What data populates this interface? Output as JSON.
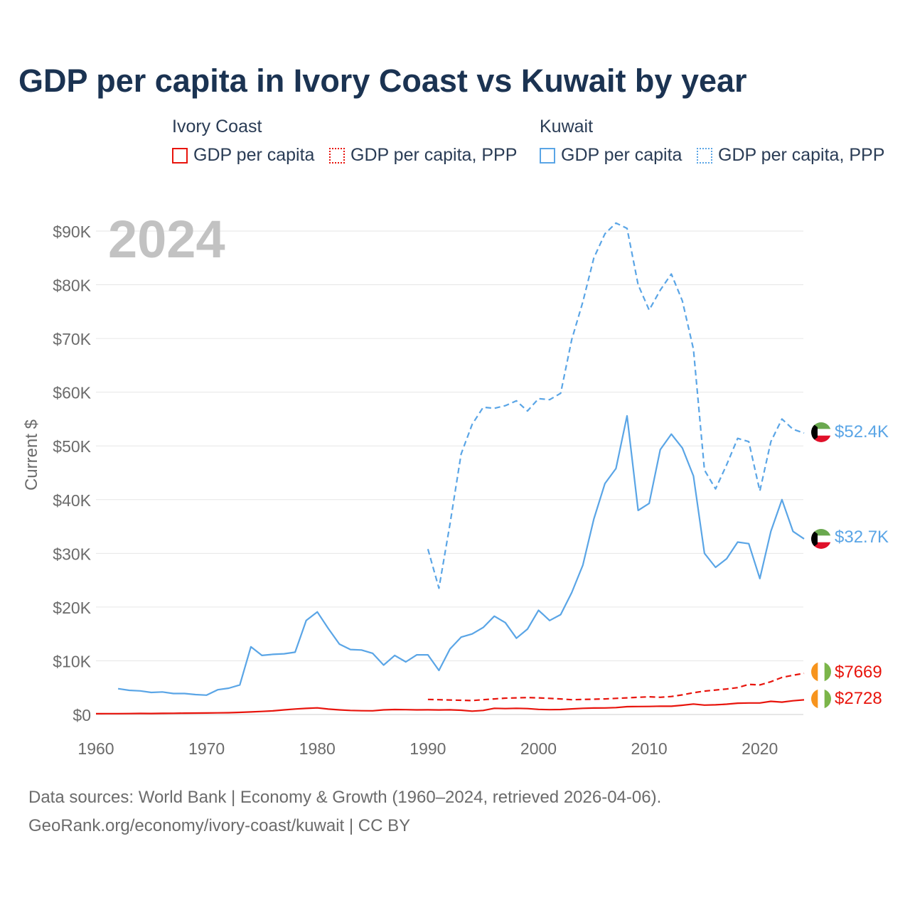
{
  "title": "GDP per capita in Ivory Coast vs Kuwait by year",
  "legend": {
    "groups": [
      {
        "name": "Ivory Coast",
        "color": "#e8140c",
        "items": [
          {
            "label": "GDP per capita",
            "style": "solid"
          },
          {
            "label": "GDP per capita, PPP",
            "style": "dotted"
          }
        ]
      },
      {
        "name": "Kuwait",
        "color": "#5aa5e6",
        "items": [
          {
            "label": "GDP per capita",
            "style": "solid"
          },
          {
            "label": "GDP per capita, PPP",
            "style": "dotted"
          }
        ]
      }
    ]
  },
  "year_watermark": "2024",
  "sources": {
    "line1": "Data sources: World Bank | Economy & Growth (1960–2024, retrieved 2026-04-06).",
    "line2": "GeoRank.org/economy/ivory-coast/kuwait | CC BY"
  },
  "chart_data": {
    "type": "line",
    "title": "GDP per capita in Ivory Coast vs Kuwait by year",
    "xlabel": "",
    "ylabel": "Current $",
    "xlim": [
      1960,
      2024
    ],
    "ylim": [
      0,
      90000
    ],
    "x_ticks": [
      1960,
      1970,
      1980,
      1990,
      2000,
      2010,
      2020
    ],
    "y_ticks": [
      0,
      10000,
      20000,
      30000,
      40000,
      50000,
      60000,
      70000,
      80000,
      90000
    ],
    "y_tick_labels": [
      "$0",
      "$10K",
      "$20K",
      "$30K",
      "$40K",
      "$50K",
      "$60K",
      "$70K",
      "$80K",
      "$90K"
    ],
    "x_tick_labels": [
      "1960",
      "1970",
      "1980",
      "1990",
      "2000",
      "2010",
      "2020"
    ],
    "grid": true,
    "series": [
      {
        "name": "Kuwait GDP per capita, PPP",
        "country": "Kuwait",
        "color": "#5aa5e6",
        "dash": "dashed",
        "end_label": "$52.4K",
        "x": [
          1990,
          1991,
          1992,
          1993,
          1994,
          1995,
          1996,
          1997,
          1998,
          1999,
          2000,
          2001,
          2002,
          2003,
          2004,
          2005,
          2006,
          2007,
          2008,
          2009,
          2010,
          2011,
          2012,
          2013,
          2014,
          2015,
          2016,
          2017,
          2018,
          2019,
          2020,
          2021,
          2022,
          2023,
          2024
        ],
        "values": [
          30800,
          23500,
          35500,
          48500,
          54000,
          57200,
          57000,
          57500,
          58400,
          56500,
          58800,
          58600,
          59800,
          69800,
          76800,
          85000,
          89500,
          91500,
          90500,
          80000,
          75300,
          79000,
          82000,
          77000,
          68000,
          45500,
          42000,
          46500,
          51400,
          50800,
          41600,
          50800,
          55000,
          53100,
          52400
        ]
      },
      {
        "name": "Kuwait GDP per capita",
        "country": "Kuwait",
        "color": "#5aa5e6",
        "dash": "solid",
        "end_label": "$32.7K",
        "x": [
          1962,
          1963,
          1964,
          1965,
          1966,
          1967,
          1968,
          1969,
          1970,
          1971,
          1972,
          1973,
          1974,
          1975,
          1976,
          1977,
          1978,
          1979,
          1980,
          1981,
          1982,
          1983,
          1984,
          1985,
          1986,
          1987,
          1988,
          1989,
          1990,
          1991,
          1992,
          1993,
          1994,
          1995,
          1996,
          1997,
          1998,
          1999,
          2000,
          2001,
          2002,
          2003,
          2004,
          2005,
          2006,
          2007,
          2008,
          2009,
          2010,
          2011,
          2012,
          2013,
          2014,
          2015,
          2016,
          2017,
          2018,
          2019,
          2020,
          2021,
          2022,
          2023,
          2024
        ],
        "values": [
          4800,
          4500,
          4400,
          4100,
          4200,
          3900,
          3900,
          3700,
          3600,
          4600,
          4900,
          5500,
          12600,
          11000,
          11200,
          11300,
          11600,
          17500,
          19100,
          16000,
          13100,
          12100,
          12000,
          11400,
          9200,
          11000,
          9800,
          11100,
          11100,
          8200,
          12200,
          14400,
          15000,
          16200,
          18300,
          17100,
          14200,
          15900,
          19400,
          17500,
          18600,
          22700,
          27800,
          36400,
          43000,
          45800,
          55600,
          38000,
          39300,
          49300,
          52200,
          49600,
          44400,
          30000,
          27400,
          29000,
          32100,
          31800,
          25300,
          34100,
          40000,
          34100,
          32700
        ]
      },
      {
        "name": "Ivory Coast GDP per capita, PPP",
        "country": "Ivory Coast",
        "color": "#e8140c",
        "dash": "dashed",
        "end_label": "$7669",
        "x": [
          1990,
          1991,
          1992,
          1993,
          1994,
          1995,
          1996,
          1997,
          1998,
          1999,
          2000,
          2001,
          2002,
          2003,
          2004,
          2005,
          2006,
          2007,
          2008,
          2009,
          2010,
          2011,
          2012,
          2013,
          2014,
          2015,
          2016,
          2017,
          2018,
          2019,
          2020,
          2021,
          2022,
          2023,
          2024
        ],
        "values": [
          2800,
          2750,
          2700,
          2650,
          2600,
          2750,
          2900,
          3050,
          3100,
          3150,
          3100,
          3000,
          2900,
          2750,
          2800,
          2850,
          2900,
          3000,
          3100,
          3200,
          3300,
          3200,
          3350,
          3650,
          4050,
          4350,
          4550,
          4750,
          5000,
          5600,
          5500,
          6100,
          6900,
          7300,
          7669
        ]
      },
      {
        "name": "Ivory Coast GDP per capita",
        "country": "Ivory Coast",
        "color": "#e8140c",
        "dash": "solid",
        "end_label": "$2728",
        "x": [
          1960,
          1961,
          1962,
          1963,
          1964,
          1965,
          1966,
          1967,
          1968,
          1969,
          1970,
          1971,
          1972,
          1973,
          1974,
          1975,
          1976,
          1977,
          1978,
          1979,
          1980,
          1981,
          1982,
          1983,
          1984,
          1985,
          1986,
          1987,
          1988,
          1989,
          1990,
          1991,
          1992,
          1993,
          1994,
          1995,
          1996,
          1997,
          1998,
          1999,
          2000,
          2001,
          2002,
          2003,
          2004,
          2005,
          2006,
          2007,
          2008,
          2009,
          2010,
          2011,
          2012,
          2013,
          2014,
          2015,
          2016,
          2017,
          2018,
          2019,
          2020,
          2021,
          2022,
          2023,
          2024
        ],
        "values": [
          150,
          155,
          165,
          175,
          200,
          190,
          210,
          220,
          250,
          260,
          280,
          300,
          330,
          400,
          480,
          570,
          680,
          860,
          1020,
          1140,
          1230,
          1000,
          860,
          760,
          700,
          690,
          860,
          920,
          900,
          860,
          880,
          850,
          870,
          800,
          620,
          750,
          1150,
          1100,
          1150,
          1100,
          950,
          900,
          920,
          1050,
          1150,
          1200,
          1220,
          1280,
          1450,
          1480,
          1500,
          1550,
          1530,
          1720,
          1950,
          1750,
          1800,
          1920,
          2100,
          2150,
          2150,
          2450,
          2300,
          2550,
          2728
        ]
      }
    ]
  }
}
